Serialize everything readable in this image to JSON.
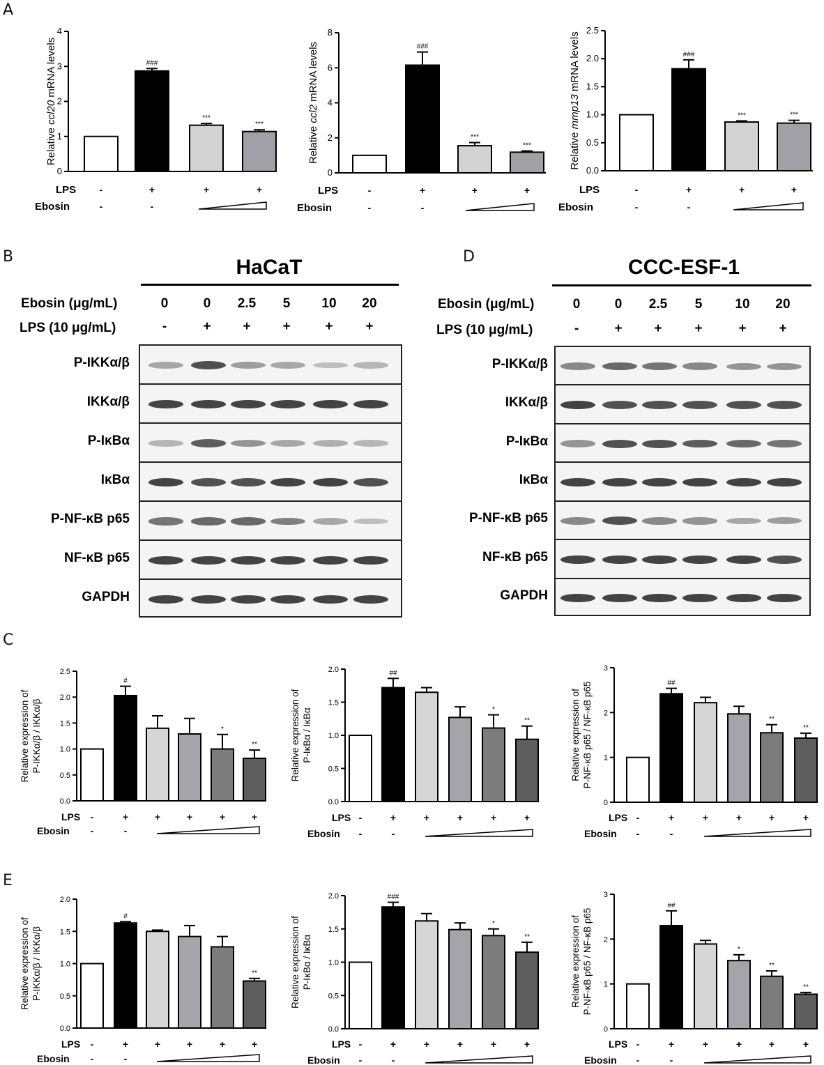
{
  "panel_labels": {
    "A": "A",
    "B": "B",
    "C": "C",
    "D": "D",
    "E": "E"
  },
  "treatment_labels": {
    "lps": "LPS",
    "ebosin": "Ebosin",
    "plus": "+",
    "minus": "-"
  },
  "blots": [
    {
      "title": "HaCaT",
      "ebosin_label": "Ebosin (μg/mL)",
      "lps_label": "LPS (10 μg/mL)",
      "ebosin_values": [
        "0",
        "0",
        "2.5",
        "5",
        "10",
        "20"
      ],
      "lps_values": [
        "-",
        "+",
        "+",
        "+",
        "+",
        "+"
      ],
      "rows": [
        {
          "label": "P-IKKα/β",
          "intensity": [
            0.45,
            0.85,
            0.5,
            0.45,
            0.3,
            0.35
          ]
        },
        {
          "label": "IKKα/β",
          "intensity": [
            0.9,
            0.9,
            0.9,
            0.9,
            0.9,
            0.9
          ]
        },
        {
          "label": "P-IκBα",
          "intensity": [
            0.35,
            0.8,
            0.55,
            0.45,
            0.4,
            0.35
          ]
        },
        {
          "label": "IκBα",
          "intensity": [
            0.9,
            0.85,
            0.85,
            0.9,
            0.9,
            0.85
          ]
        },
        {
          "label": "P-NF-κB p65",
          "intensity": [
            0.7,
            0.75,
            0.75,
            0.65,
            0.45,
            0.3
          ]
        },
        {
          "label": "NF-κB p65",
          "intensity": [
            0.9,
            0.9,
            0.9,
            0.9,
            0.9,
            0.9
          ]
        },
        {
          "label": "GAPDH",
          "intensity": [
            0.9,
            0.9,
            0.9,
            0.9,
            0.9,
            0.9
          ]
        }
      ]
    },
    {
      "title": "CCC-ESF-1",
      "ebosin_label": "Ebosin (μg/mL)",
      "lps_label": "LPS (10 μg/mL)",
      "ebosin_values": [
        "0",
        "0",
        "2.5",
        "5",
        "10",
        "20"
      ],
      "lps_values": [
        "-",
        "+",
        "+",
        "+",
        "+",
        "+"
      ],
      "rows": [
        {
          "label": "P-IKKα/β",
          "intensity": [
            0.6,
            0.75,
            0.7,
            0.6,
            0.55,
            0.55
          ]
        },
        {
          "label": "IKKα/β",
          "intensity": [
            0.9,
            0.85,
            0.85,
            0.85,
            0.85,
            0.85
          ]
        },
        {
          "label": "P-IκBα",
          "intensity": [
            0.55,
            0.85,
            0.85,
            0.8,
            0.75,
            0.7
          ]
        },
        {
          "label": "IκBα",
          "intensity": [
            0.9,
            0.9,
            0.9,
            0.9,
            0.9,
            0.9
          ]
        },
        {
          "label": "P-NF-κB p65",
          "intensity": [
            0.6,
            0.85,
            0.6,
            0.55,
            0.45,
            0.5
          ]
        },
        {
          "label": "NF-κB p65",
          "intensity": [
            0.9,
            0.9,
            0.9,
            0.9,
            0.9,
            0.85
          ]
        },
        {
          "label": "GAPDH",
          "intensity": [
            0.9,
            0.9,
            0.9,
            0.9,
            0.9,
            0.9
          ]
        }
      ]
    }
  ],
  "chart_data": [
    {
      "type": "bar",
      "panel": "A",
      "ylabel_parts": [
        "Relative ",
        "ccl20",
        " mRNA  levels"
      ],
      "ylim": [
        0,
        4
      ],
      "yticks": [
        "0",
        "1",
        "2",
        "3",
        "4"
      ],
      "values": [
        1.0,
        2.87,
        1.32,
        1.14
      ],
      "errors": [
        0,
        0.07,
        0.05,
        0.05
      ],
      "marks": [
        "",
        "###",
        "***",
        "***"
      ],
      "colors": [
        "#ffffff",
        "#000000",
        "#d3d3d3",
        "#a0a0a6"
      ],
      "lps": [
        "-",
        "+",
        "+",
        "+"
      ],
      "ebosin": [
        "-",
        "-"
      ]
    },
    {
      "type": "bar",
      "panel": "A",
      "ylabel_parts": [
        "Relative ",
        "ccl2",
        " mRNA  levels"
      ],
      "ylim": [
        0,
        8
      ],
      "yticks": [
        "0",
        "2",
        "4",
        "6",
        "8"
      ],
      "values": [
        1.0,
        6.15,
        1.55,
        1.18
      ],
      "errors": [
        0,
        0.75,
        0.18,
        0.07
      ],
      "marks": [
        "",
        "###",
        "***",
        "***"
      ],
      "colors": [
        "#ffffff",
        "#000000",
        "#d3d3d3",
        "#a0a0a6"
      ],
      "lps": [
        "-",
        "+",
        "+",
        "+"
      ],
      "ebosin": [
        "-",
        "-"
      ]
    },
    {
      "type": "bar",
      "panel": "A",
      "ylabel_parts": [
        "Relative ",
        "mmp13",
        " mRNA  levels"
      ],
      "ylim": [
        0,
        2.5
      ],
      "yticks": [
        "0.0",
        "0.5",
        "1.0",
        "1.5",
        "2.0",
        "2.5"
      ],
      "values": [
        1.0,
        1.82,
        0.87,
        0.85
      ],
      "errors": [
        0,
        0.16,
        0.02,
        0.05
      ],
      "marks": [
        "",
        "###",
        "***",
        "***"
      ],
      "colors": [
        "#ffffff",
        "#000000",
        "#d3d3d3",
        "#a0a0a6"
      ],
      "lps": [
        "-",
        "+",
        "+",
        "+"
      ],
      "ebosin": [
        "-",
        "-"
      ]
    },
    {
      "type": "bar",
      "panel": "C",
      "ylabel_lines": [
        "Relative expression of",
        "P-IKKα/β / IKKα/β"
      ],
      "ylim": [
        0,
        2.5
      ],
      "yticks": [
        "0.0",
        "0.5",
        "1.0",
        "1.5",
        "2.0",
        "2.5"
      ],
      "values": [
        1.0,
        2.03,
        1.4,
        1.29,
        1.0,
        0.82
      ],
      "errors": [
        0,
        0.18,
        0.24,
        0.3,
        0.28,
        0.16
      ],
      "marks": [
        "",
        "#",
        "",
        "",
        "*",
        "**"
      ],
      "colors": [
        "#ffffff",
        "#000000",
        "#d6d6d6",
        "#a4a4aa",
        "#7c7c7c",
        "#5e5e5e"
      ],
      "lps": [
        "-",
        "+",
        "+",
        "+",
        "+",
        "+"
      ],
      "ebosin": [
        "-",
        "-"
      ]
    },
    {
      "type": "bar",
      "panel": "C",
      "ylabel_lines": [
        "Relative expression of",
        "P-IκBα / IκBα"
      ],
      "ylim": [
        0,
        2.0
      ],
      "yticks": [
        "0.0",
        "0.5",
        "1.0",
        "1.5",
        "2.0"
      ],
      "values": [
        1.0,
        1.72,
        1.65,
        1.27,
        1.11,
        0.94
      ],
      "errors": [
        0,
        0.14,
        0.07,
        0.16,
        0.2,
        0.2
      ],
      "marks": [
        "",
        "##",
        "",
        "",
        "*",
        "**"
      ],
      "colors": [
        "#ffffff",
        "#000000",
        "#d6d6d6",
        "#a4a4aa",
        "#7c7c7c",
        "#5e5e5e"
      ],
      "lps": [
        "-",
        "+",
        "+",
        "+",
        "+",
        "+"
      ],
      "ebosin": [
        "-",
        "-"
      ]
    },
    {
      "type": "bar",
      "panel": "C",
      "ylabel_lines": [
        "Relative expression of",
        "P-NF-κB p65 / NF-κB p65"
      ],
      "ylim": [
        0,
        3
      ],
      "yticks": [
        "0",
        "1",
        "2",
        "3"
      ],
      "values": [
        1.0,
        2.42,
        2.22,
        1.97,
        1.55,
        1.43
      ],
      "errors": [
        0,
        0.12,
        0.12,
        0.17,
        0.18,
        0.11
      ],
      "marks": [
        "",
        "##",
        "",
        "",
        "**",
        "**"
      ],
      "colors": [
        "#ffffff",
        "#000000",
        "#d6d6d6",
        "#a4a4aa",
        "#7c7c7c",
        "#5e5e5e"
      ],
      "lps": [
        "-",
        "+",
        "+",
        "+",
        "+",
        "+"
      ],
      "ebosin": [
        "-",
        "-"
      ]
    },
    {
      "type": "bar",
      "panel": "E",
      "ylabel_lines": [
        "Relative expression of",
        "P-IKKα/β / IKKα/β"
      ],
      "ylim": [
        0,
        2.0
      ],
      "yticks": [
        "0.0",
        "0.5",
        "1.0",
        "1.5",
        "2.0"
      ],
      "values": [
        1.0,
        1.63,
        1.5,
        1.42,
        1.26,
        0.73
      ],
      "errors": [
        0,
        0.02,
        0.02,
        0.17,
        0.16,
        0.04
      ],
      "marks": [
        "",
        "#",
        "",
        "",
        "",
        "**"
      ],
      "colors": [
        "#ffffff",
        "#000000",
        "#d6d6d6",
        "#a4a4aa",
        "#7c7c7c",
        "#5e5e5e"
      ],
      "lps": [
        "-",
        "+",
        "+",
        "+",
        "+",
        "+"
      ],
      "ebosin": [
        "-",
        "-"
      ]
    },
    {
      "type": "bar",
      "panel": "E",
      "ylabel_lines": [
        "Relative expression of",
        "P-IκBα / IκBα"
      ],
      "ylim": [
        0,
        2.0
      ],
      "yticks": [
        "0.0",
        "0.5",
        "1.0",
        "1.5",
        "2.0"
      ],
      "values": [
        1.0,
        1.83,
        1.62,
        1.49,
        1.4,
        1.15
      ],
      "errors": [
        0,
        0.07,
        0.11,
        0.1,
        0.1,
        0.15
      ],
      "marks": [
        "",
        "###",
        "",
        "",
        "*",
        "**"
      ],
      "colors": [
        "#ffffff",
        "#000000",
        "#d6d6d6",
        "#a4a4aa",
        "#7c7c7c",
        "#5e5e5e"
      ],
      "lps": [
        "-",
        "+",
        "+",
        "+",
        "+",
        "+"
      ],
      "ebosin": [
        "-",
        "-"
      ]
    },
    {
      "type": "bar",
      "panel": "E",
      "ylabel_lines": [
        "Relative expression of",
        "P-NF-κB p65 / NF-κB p65"
      ],
      "ylim": [
        0,
        3
      ],
      "yticks": [
        "0",
        "1",
        "2",
        "3"
      ],
      "values": [
        1.0,
        2.3,
        1.89,
        1.52,
        1.17,
        0.77
      ],
      "errors": [
        0,
        0.33,
        0.08,
        0.13,
        0.12,
        0.04
      ],
      "marks": [
        "",
        "##",
        "",
        "*",
        "**",
        "**"
      ],
      "colors": [
        "#ffffff",
        "#000000",
        "#d6d6d6",
        "#a4a4aa",
        "#7c7c7c",
        "#5e5e5e"
      ],
      "lps": [
        "-",
        "+",
        "+",
        "+",
        "+",
        "+"
      ],
      "ebosin": [
        "-",
        "-"
      ]
    }
  ]
}
